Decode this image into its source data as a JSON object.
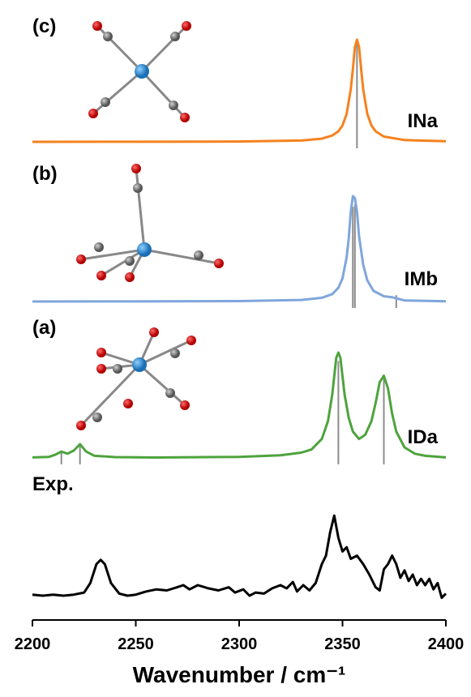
{
  "chart_data": {
    "type": "line",
    "xlabel": "Wavenumber / cm⁻¹",
    "xlim": [
      2200,
      2400
    ],
    "xticks": [
      2200,
      2250,
      2300,
      2350,
      2400
    ],
    "ylim": [
      0,
      1
    ],
    "series": [
      {
        "label": "(c)",
        "name": "INa",
        "color": "#f5821f",
        "x": [
          2200,
          2250,
          2300,
          2330,
          2340,
          2345,
          2348,
          2350,
          2352,
          2354,
          2355,
          2356,
          2357,
          2358,
          2359,
          2360,
          2362,
          2364,
          2366,
          2370,
          2380,
          2400
        ],
        "values": [
          0,
          0.001,
          0.003,
          0.012,
          0.03,
          0.06,
          0.1,
          0.155,
          0.265,
          0.5,
          0.69,
          0.9,
          0.97,
          0.9,
          0.69,
          0.5,
          0.265,
          0.155,
          0.1,
          0.05,
          0.017,
          0.005
        ],
        "sticks_x": [
          2357
        ],
        "sticks_values": [
          0.97
        ]
      },
      {
        "label": "(b)",
        "name": "IMb",
        "color": "#7fa6dc",
        "x": [
          2200,
          2250,
          2300,
          2330,
          2340,
          2345,
          2348,
          2350,
          2352,
          2353,
          2354,
          2355,
          2356,
          2357,
          2358,
          2360,
          2362,
          2365,
          2370,
          2374,
          2376,
          2380,
          2400
        ],
        "values": [
          0,
          0.001,
          0.004,
          0.015,
          0.035,
          0.07,
          0.13,
          0.22,
          0.42,
          0.6,
          0.85,
          1.0,
          0.98,
          0.85,
          0.62,
          0.35,
          0.2,
          0.1,
          0.05,
          0.04,
          0.03,
          0.01,
          0.002
        ],
        "sticks_x": [
          2355,
          2356,
          2376
        ],
        "sticks_values": [
          0.9,
          0.92,
          0.06
        ]
      },
      {
        "label": "(a)",
        "name": "IDa",
        "color": "#4ea33d",
        "x": [
          2200,
          2208,
          2211,
          2214,
          2217,
          2220,
          2223,
          2226,
          2230,
          2240,
          2260,
          2300,
          2320,
          2330,
          2335,
          2340,
          2343,
          2345,
          2347,
          2348,
          2349,
          2351,
          2353,
          2355,
          2358,
          2361,
          2364,
          2366,
          2368,
          2370,
          2372,
          2374,
          2376,
          2380,
          2385,
          2390,
          2400
        ],
        "values": [
          0.005,
          0.01,
          0.03,
          0.06,
          0.04,
          0.07,
          0.13,
          0.06,
          0.02,
          0.008,
          0.004,
          0.01,
          0.025,
          0.05,
          0.08,
          0.18,
          0.35,
          0.6,
          0.95,
          1.0,
          0.95,
          0.6,
          0.38,
          0.25,
          0.18,
          0.22,
          0.35,
          0.52,
          0.72,
          0.78,
          0.66,
          0.42,
          0.25,
          0.1,
          0.04,
          0.02,
          0.005
        ],
        "sticks_x": [
          2214,
          2223,
          2348,
          2370
        ],
        "sticks_values": [
          0.06,
          0.13,
          0.92,
          0.75
        ]
      },
      {
        "label": "Exp.",
        "color": "#000000",
        "x": [
          2200,
          2205,
          2210,
          2215,
          2220,
          2225,
          2228,
          2231,
          2233,
          2235,
          2238,
          2242,
          2246,
          2250,
          2255,
          2260,
          2265,
          2270,
          2273,
          2276,
          2280,
          2285,
          2290,
          2295,
          2298,
          2302,
          2305,
          2308,
          2312,
          2316,
          2320,
          2323,
          2326,
          2328,
          2331,
          2334,
          2337,
          2340,
          2342,
          2344,
          2346,
          2348,
          2350,
          2352,
          2354,
          2357,
          2360,
          2363,
          2366,
          2368,
          2370,
          2372,
          2374,
          2376,
          2378,
          2380,
          2382,
          2384,
          2386,
          2388,
          2390,
          2392,
          2394,
          2396,
          2398,
          2400
        ],
        "values": [
          0.01,
          0,
          0.01,
          0,
          0.01,
          0.03,
          0.12,
          0.3,
          0.34,
          0.3,
          0.12,
          0.02,
          0,
          0.01,
          0.04,
          0.06,
          0.05,
          0.08,
          0.1,
          0.06,
          0.1,
          0.07,
          0.05,
          0.08,
          0.03,
          0.06,
          0,
          0.03,
          0.02,
          0.07,
          0.1,
          0.07,
          0.13,
          0.04,
          0.1,
          0.05,
          0.12,
          0.3,
          0.38,
          0.6,
          0.76,
          0.55,
          0.42,
          0.46,
          0.35,
          0.38,
          0.3,
          0.2,
          0.08,
          0.05,
          0.25,
          0.3,
          0.38,
          0.3,
          0.17,
          0.24,
          0.14,
          0.2,
          0.1,
          0.16,
          0.1,
          0.16,
          0.06,
          0.12,
          -0.02,
          0.02
        ]
      }
    ]
  }
}
